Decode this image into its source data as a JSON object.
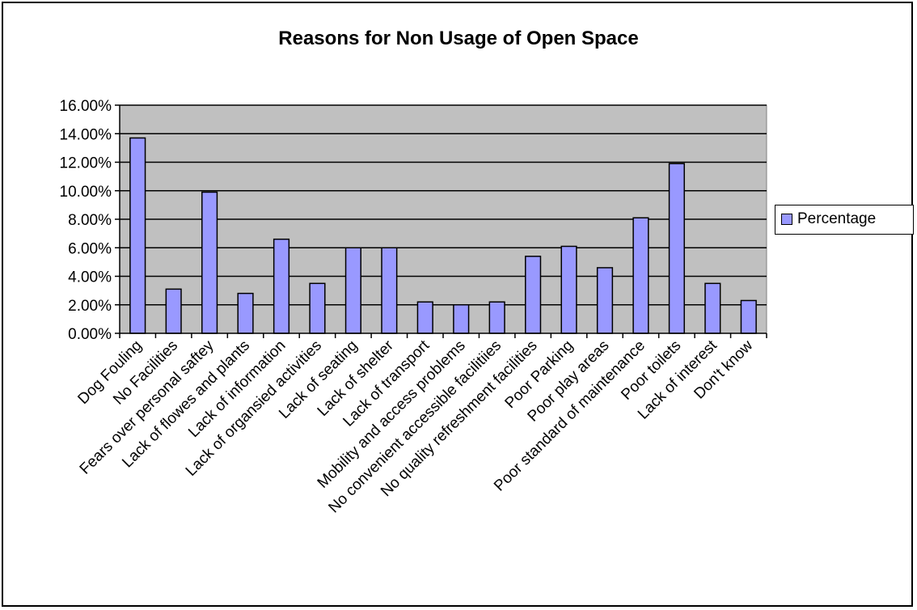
{
  "chart_data": {
    "type": "bar",
    "title": "Reasons for Non Usage of Open Space",
    "xlabel": "",
    "ylabel": "",
    "ylim": [
      0,
      0.16
    ],
    "y_ticks": [
      "0.00%",
      "2.00%",
      "4.00%",
      "6.00%",
      "8.00%",
      "10.00%",
      "12.00%",
      "14.00%",
      "16.00%"
    ],
    "grid": true,
    "legend_position": "right",
    "categories": [
      "Dog Fouling",
      "No Facilities",
      "Fears over personal saftey",
      "Lack of flowes and plants",
      "Lack of information",
      "Lack of organsied activities",
      "Lack of seating",
      "Lack of shelter",
      "Lack of transport",
      "Mobility and access problems",
      "No convenient accessible facilitiies",
      "No quality refreshment facilities",
      "Poor Parking",
      "Poor play areas",
      "Poor standard of maintenance",
      "Poor toilets",
      "Lack of interest",
      "Don't know"
    ],
    "series": [
      {
        "name": "Percentage",
        "values": [
          0.137,
          0.031,
          0.099,
          0.028,
          0.066,
          0.035,
          0.06,
          0.06,
          0.022,
          0.02,
          0.022,
          0.054,
          0.061,
          0.046,
          0.081,
          0.119,
          0.035,
          0.023
        ]
      }
    ],
    "colors": {
      "bar_fill": "#9999ff",
      "bar_stroke": "#000000",
      "plot_background": "#c0c0c0",
      "gridline": "#000000"
    }
  }
}
